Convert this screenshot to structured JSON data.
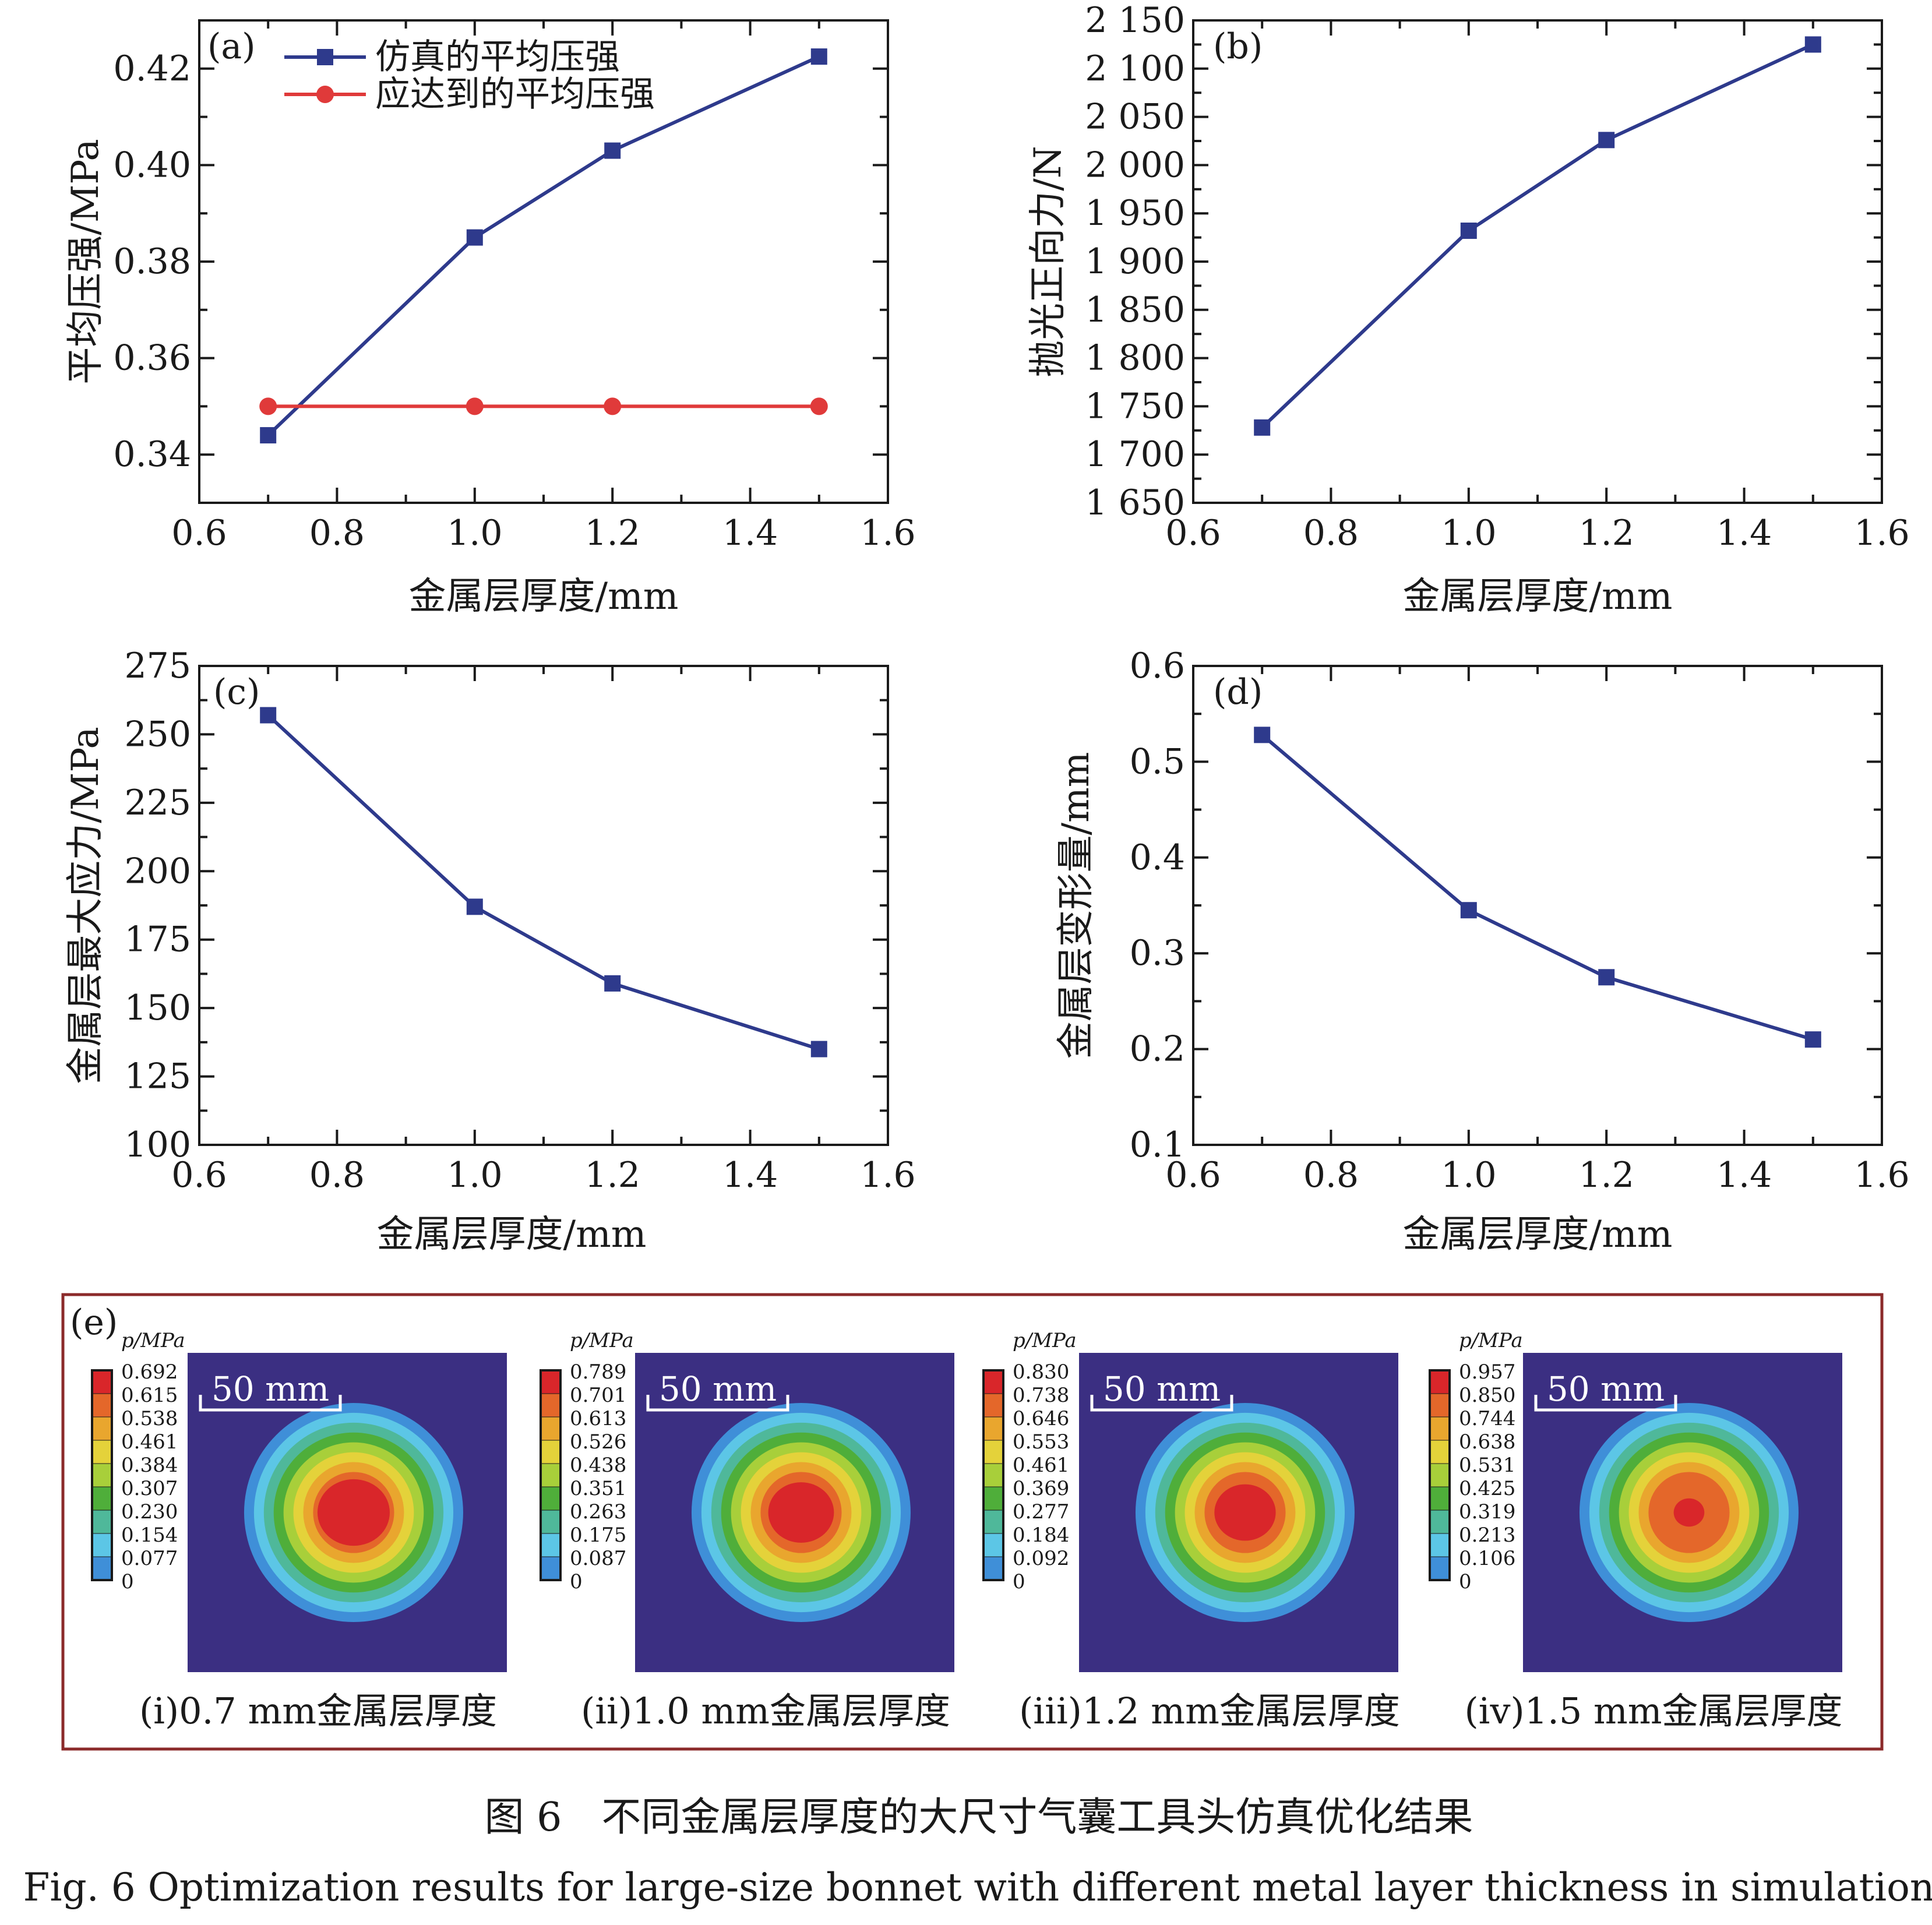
{
  "colors": {
    "sim_series": "#2e3a8c",
    "target_series": "#e03a3a",
    "axis": "#1a1a1a",
    "panel_e_border": "#8b2a2a",
    "map_background": "#3b2f82"
  },
  "chart_data": [
    {
      "panel": "(a)",
      "type": "line",
      "xlabel": "金属层厚度/mm",
      "ylabel": "平均压强/MPa",
      "xlim": [
        0.6,
        1.6
      ],
      "ylim": [
        0.33,
        0.43
      ],
      "xticks": [
        0.6,
        0.8,
        1.0,
        1.2,
        1.4,
        1.6
      ],
      "xtick_labels": [
        "0.6",
        "0.8",
        "1.0",
        "1.2",
        "1.4",
        "1.6"
      ],
      "yticks": [
        0.34,
        0.36,
        0.38,
        0.4,
        0.42
      ],
      "ytick_labels": [
        "0.34",
        "0.36",
        "0.38",
        "0.40",
        "0.42"
      ],
      "legend_position": "top-left",
      "series": [
        {
          "name": "仿真的平均压强",
          "marker": "square",
          "color": "#2e3a8c",
          "x": [
            0.7,
            1.0,
            1.2,
            1.5
          ],
          "y": [
            0.344,
            0.385,
            0.403,
            0.4225
          ]
        },
        {
          "name": "应达到的平均压强",
          "marker": "circle",
          "color": "#e03a3a",
          "x": [
            0.7,
            1.0,
            1.2,
            1.5
          ],
          "y": [
            0.35,
            0.35,
            0.35,
            0.35
          ]
        }
      ]
    },
    {
      "panel": "(b)",
      "type": "line",
      "xlabel": "金属层厚度/mm",
      "ylabel": "抛光正向力/N",
      "xlim": [
        0.6,
        1.6
      ],
      "ylim": [
        1650,
        2150
      ],
      "xticks": [
        0.6,
        0.8,
        1.0,
        1.2,
        1.4,
        1.6
      ],
      "xtick_labels": [
        "0.6",
        "0.8",
        "1.0",
        "1.2",
        "1.4",
        "1.6"
      ],
      "yticks": [
        1650,
        1700,
        1750,
        1800,
        1850,
        1900,
        1950,
        2000,
        2050,
        2100,
        2150
      ],
      "ytick_labels": [
        "1 650",
        "1 700",
        "1 750",
        "1 800",
        "1 850",
        "1 900",
        "1 950",
        "2 000",
        "2 050",
        "2 100",
        "2 150"
      ],
      "series": [
        {
          "marker": "square",
          "color": "#2e3a8c",
          "x": [
            0.7,
            1.0,
            1.2,
            1.5
          ],
          "y": [
            1728,
            1932,
            2026,
            2125
          ]
        }
      ]
    },
    {
      "panel": "(c)",
      "type": "line",
      "xlabel": "金属层厚度/mm",
      "ylabel": "金属层最大应力/MPa",
      "xlim": [
        0.6,
        1.6
      ],
      "ylim": [
        100,
        275
      ],
      "xticks": [
        0.6,
        0.8,
        1.0,
        1.2,
        1.4,
        1.6
      ],
      "xtick_labels": [
        "0.6",
        "0.8",
        "1.0",
        "1.2",
        "1.4",
        "1.6"
      ],
      "yticks": [
        100,
        125,
        150,
        175,
        200,
        225,
        250,
        275
      ],
      "ytick_labels": [
        "100",
        "125",
        "150",
        "175",
        "200",
        "225",
        "250",
        "275"
      ],
      "series": [
        {
          "marker": "square",
          "color": "#2e3a8c",
          "x": [
            0.7,
            1.0,
            1.2,
            1.5
          ],
          "y": [
            257,
            187,
            159,
            135
          ]
        }
      ]
    },
    {
      "panel": "(d)",
      "type": "line",
      "xlabel": "金属层厚度/mm",
      "ylabel": "金属层变形量/mm",
      "xlim": [
        0.6,
        1.6
      ],
      "ylim": [
        0.1,
        0.6
      ],
      "xticks": [
        0.6,
        0.8,
        1.0,
        1.2,
        1.4,
        1.6
      ],
      "xtick_labels": [
        "0.6",
        "0.8",
        "1.0",
        "1.2",
        "1.4",
        "1.6"
      ],
      "yticks": [
        0.1,
        0.2,
        0.3,
        0.4,
        0.5,
        0.6
      ],
      "ytick_labels": [
        "0.1",
        "0.2",
        "0.3",
        "0.4",
        "0.5",
        "0.6"
      ],
      "series": [
        {
          "marker": "square",
          "color": "#2e3a8c",
          "x": [
            0.7,
            1.0,
            1.2,
            1.5
          ],
          "y": [
            0.528,
            0.345,
            0.275,
            0.21
          ]
        }
      ]
    },
    {
      "panel": "(e)",
      "type": "heatmap",
      "legend_title": "p/MPa",
      "scale_bar": "50 mm",
      "colormap": [
        "#2b2f7a",
        "#3f8fd8",
        "#5cc6e6",
        "#4fb89a",
        "#4fae3a",
        "#a8cf3a",
        "#e4d23a",
        "#e9a62e",
        "#e4672a",
        "#d9262a"
      ],
      "maps": [
        {
          "caption": "(i)0.7 mm金属层厚度",
          "levels": [
            "0.692",
            "0.615",
            "0.538",
            "0.461",
            "0.384",
            "0.307",
            "0.230",
            "0.154",
            "0.077",
            "0"
          ],
          "peak_fraction": 0.33
        },
        {
          "caption": "(ii)1.0 mm金属层厚度",
          "levels": [
            "0.789",
            "0.701",
            "0.613",
            "0.526",
            "0.438",
            "0.351",
            "0.263",
            "0.175",
            "0.087",
            "0"
          ],
          "peak_fraction": 0.3
        },
        {
          "caption": "(iii)1.2 mm金属层厚度",
          "levels": [
            "0.830",
            "0.738",
            "0.646",
            "0.553",
            "0.461",
            "0.369",
            "0.277",
            "0.184",
            "0.092",
            "0"
          ],
          "peak_fraction": 0.28
        },
        {
          "caption": "(iv)1.5 mm金属层厚度",
          "levels": [
            "0.957",
            "0.850",
            "0.744",
            "0.638",
            "0.531",
            "0.425",
            "0.319",
            "0.213",
            "0.106",
            "0"
          ],
          "peak_fraction": 0.14
        }
      ]
    }
  ],
  "caption": {
    "zh": "图 6　不同金属层厚度的大尺寸气囊工具头仿真优化结果",
    "en": "Fig. 6  Optimization results for large-size bonnet with different metal layer thickness in simulation"
  }
}
